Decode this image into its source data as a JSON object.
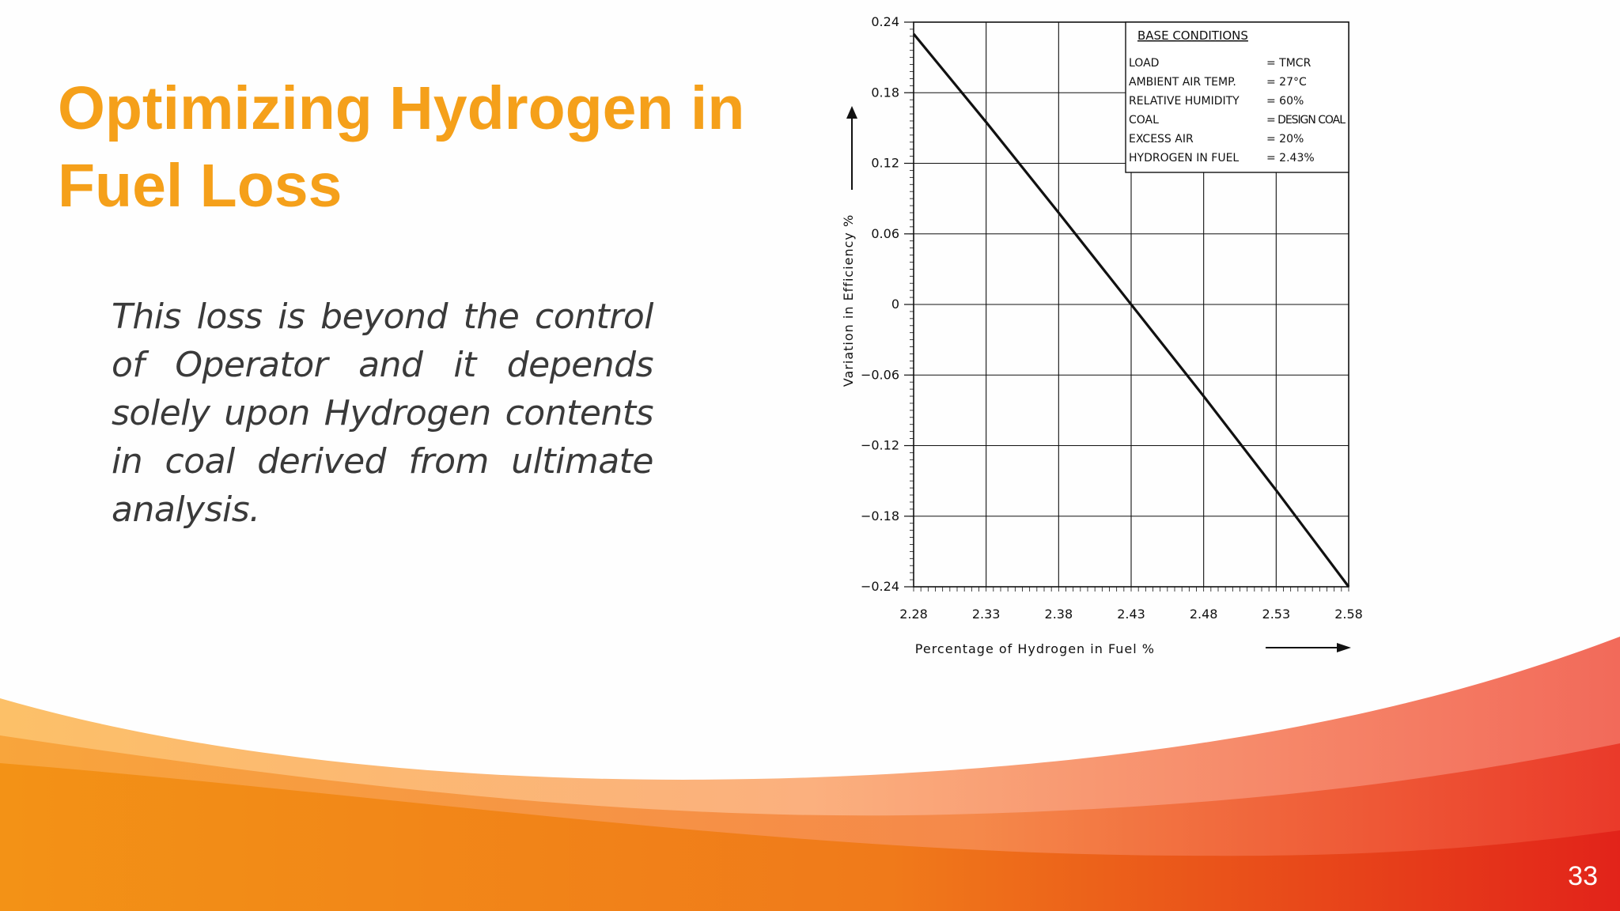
{
  "slide": {
    "title_line1": "Optimizing Hydrogen in",
    "title_line2": "Fuel Loss",
    "body": "This loss is beyond the control of Operator and it depends solely upon Hydrogen contents in coal derived from ultimate analysis.",
    "page_number": "33"
  },
  "colors": {
    "title": "#f5a01a",
    "body_text": "#3a3a3a",
    "chart_ink": "#111111",
    "wave_orange": "#f39216",
    "wave_red": "#e2231a"
  },
  "chart_data": {
    "type": "line",
    "xlabel": "Percentage of Hydrogen in Fuel %",
    "ylabel": "Variation in Efficiency %",
    "x_ticks": [
      "2.28",
      "2.33",
      "2.38",
      "2.43",
      "2.48",
      "2.53",
      "2.58"
    ],
    "y_ticks": [
      "0.24",
      "0.18",
      "0.12",
      "0.06",
      "0",
      "−0.06",
      "−0.12",
      "−0.18",
      "−0.24"
    ],
    "xlim": [
      2.28,
      2.58
    ],
    "ylim": [
      -0.24,
      0.24
    ],
    "grid": true,
    "series": [
      {
        "x": [
          2.28,
          2.33,
          2.38,
          2.43,
          2.48,
          2.53,
          2.58
        ],
        "y": [
          0.23,
          0.155,
          0.078,
          0.0,
          -0.078,
          -0.158,
          -0.24
        ]
      }
    ],
    "legend_box": {
      "heading": "BASE CONDITIONS",
      "rows": [
        {
          "label": "LOAD",
          "value": "= TMCR"
        },
        {
          "label": "AMBIENT AIR TEMP.",
          "value": "= 27°C"
        },
        {
          "label": "RELATIVE HUMIDITY",
          "value": "= 60%"
        },
        {
          "label": "COAL",
          "value": "= DESIGN COAL"
        },
        {
          "label": "EXCESS AIR",
          "value": "= 20%"
        },
        {
          "label": "HYDROGEN IN FUEL",
          "value": "= 2.43%"
        }
      ]
    }
  }
}
